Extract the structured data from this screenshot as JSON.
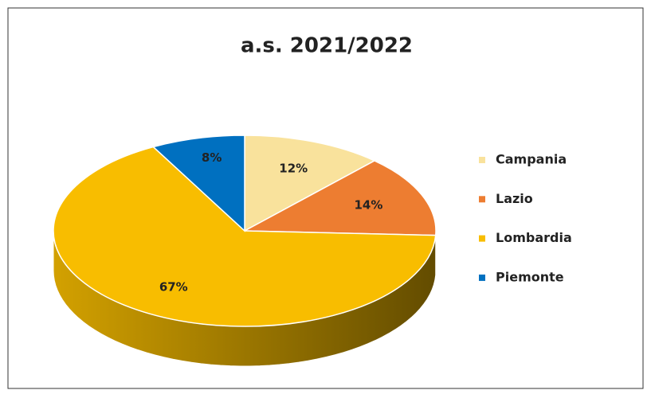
{
  "chart_data": {
    "type": "pie",
    "title": "a.s. 2021/2022",
    "categories": [
      "Campania",
      "Lazio",
      "Lombardia",
      "Piemonte"
    ],
    "values": [
      12,
      14,
      67,
      8
    ],
    "value_labels": [
      "12%",
      "14%",
      "67%",
      "8%"
    ],
    "colors": [
      "#f9e29c",
      "#ed7d31",
      "#f8bd00",
      "#0070c0"
    ],
    "legend": "right"
  }
}
